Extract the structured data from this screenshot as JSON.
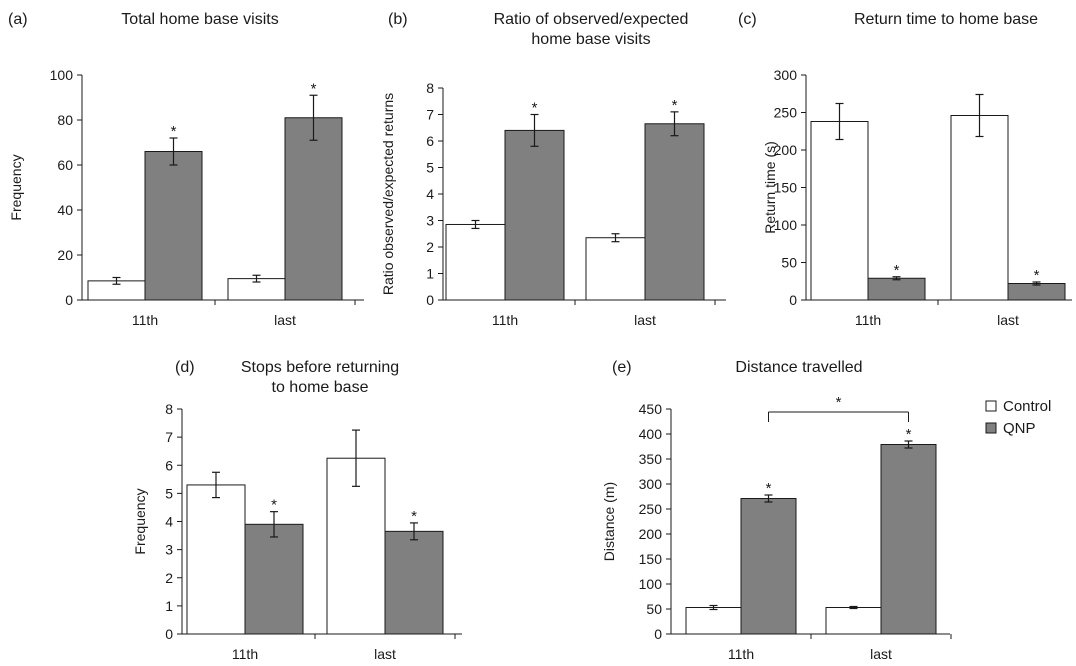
{
  "legend": {
    "items": [
      {
        "label": "Control",
        "fill": "#ffffff"
      },
      {
        "label": "QNP",
        "fill": "#808080"
      }
    ]
  },
  "colors": {
    "control": "#ffffff",
    "qnp": "#808080",
    "stroke": "#1a1a1a"
  },
  "chart_data": [
    {
      "panel": "(a)",
      "type": "bar",
      "title": [
        "Total home base visits"
      ],
      "ylabel": "Frequency",
      "categories": [
        "11th",
        "last"
      ],
      "ylim": [
        0,
        100
      ],
      "yticks": [
        0,
        20,
        40,
        60,
        80,
        100
      ],
      "series": [
        {
          "name": "Control",
          "values": [
            8.5,
            9.5
          ],
          "errors": [
            1.5,
            1.5
          ],
          "significance": [
            "",
            ""
          ]
        },
        {
          "name": "QNP",
          "values": [
            66,
            81
          ],
          "errors": [
            6,
            10
          ],
          "significance": [
            "*",
            "*"
          ]
        }
      ]
    },
    {
      "panel": "(b)",
      "type": "bar",
      "title": [
        "Ratio of observed/expected",
        "home base visits"
      ],
      "ylabel": "Ratio observed/expected returns",
      "categories": [
        "11th",
        "last"
      ],
      "ylim": [
        0,
        8
      ],
      "yticks": [
        0,
        1,
        2,
        3,
        4,
        5,
        6,
        7,
        8
      ],
      "series": [
        {
          "name": "Control",
          "values": [
            2.85,
            2.35
          ],
          "errors": [
            0.15,
            0.15
          ],
          "significance": [
            "",
            ""
          ]
        },
        {
          "name": "QNP",
          "values": [
            6.4,
            6.65
          ],
          "errors": [
            0.6,
            0.45
          ],
          "significance": [
            "*",
            "*"
          ]
        }
      ]
    },
    {
      "panel": "(c)",
      "type": "bar",
      "title": [
        "Return time to home base"
      ],
      "ylabel": "Return time (s)",
      "categories": [
        "11th",
        "last"
      ],
      "ylim": [
        0,
        300
      ],
      "yticks": [
        0,
        50,
        100,
        150,
        200,
        250,
        300
      ],
      "series": [
        {
          "name": "Control",
          "values": [
            238,
            246
          ],
          "errors": [
            24,
            28
          ],
          "significance": [
            "",
            ""
          ]
        },
        {
          "name": "QNP",
          "values": [
            29,
            22
          ],
          "errors": [
            2,
            2
          ],
          "significance": [
            "*",
            "*"
          ]
        }
      ]
    },
    {
      "panel": "(d)",
      "type": "bar",
      "title": [
        "Stops before returning",
        "to home base"
      ],
      "ylabel": "Frequency",
      "categories": [
        "11th",
        "last"
      ],
      "ylim": [
        0,
        8
      ],
      "yticks": [
        0,
        1,
        2,
        3,
        4,
        5,
        6,
        7,
        8
      ],
      "series": [
        {
          "name": "Control",
          "values": [
            5.3,
            6.25
          ],
          "errors": [
            0.45,
            1.0
          ],
          "significance": [
            "",
            ""
          ]
        },
        {
          "name": "QNP",
          "values": [
            3.9,
            3.65
          ],
          "errors": [
            0.45,
            0.3
          ],
          "significance": [
            "*",
            "*"
          ]
        }
      ]
    },
    {
      "panel": "(e)",
      "type": "bar",
      "title": [
        "Distance travelled"
      ],
      "ylabel": "Distance (m)",
      "categories": [
        "11th",
        "last"
      ],
      "ylim": [
        0,
        450
      ],
      "yticks": [
        0,
        50,
        100,
        150,
        200,
        250,
        300,
        350,
        400,
        450
      ],
      "series": [
        {
          "name": "Control",
          "values": [
            53,
            53
          ],
          "errors": [
            4,
            2
          ],
          "significance": [
            "",
            ""
          ]
        },
        {
          "name": "QNP",
          "values": [
            271,
            379
          ],
          "errors": [
            7,
            7
          ],
          "significance": [
            "*",
            "*"
          ]
        }
      ],
      "comparison": {
        "between": [
          "11th",
          "last"
        ],
        "series": "QNP",
        "label": "*"
      }
    }
  ]
}
